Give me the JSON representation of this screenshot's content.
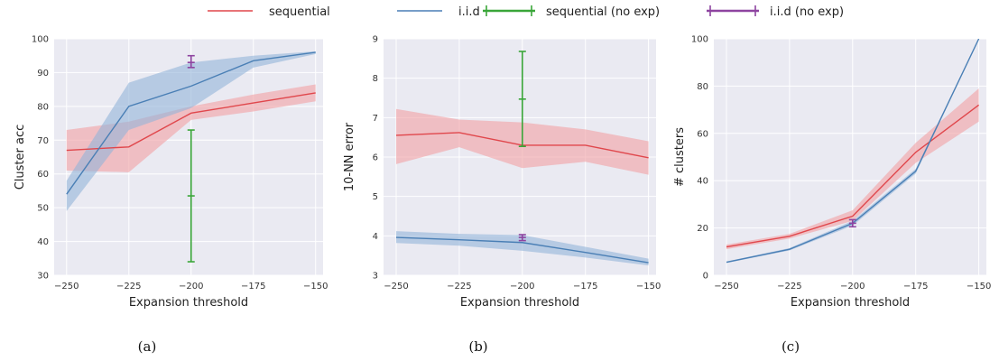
{
  "legend": [
    {
      "label": "sequential",
      "color": "#e0474c",
      "style": "line"
    },
    {
      "label": "i.i.d",
      "color": "#4a7fb5",
      "style": "line"
    },
    {
      "label": "sequential (no exp)",
      "color": "#3aa639",
      "style": "errorbar"
    },
    {
      "label": "i.i.d (no exp)",
      "color": "#8e44a0",
      "style": "errorbar"
    }
  ],
  "colors": {
    "background": "#eaeaf2",
    "grid": "#ffffff",
    "sequential": "#e0474c",
    "sequential_band": "#f2a0a4",
    "iid": "#4a7fb5",
    "iid_band": "#93b4d9",
    "sequential_noexp": "#3aa639",
    "iid_noexp": "#8e44a0"
  },
  "chart_data": [
    {
      "type": "line",
      "caption": "(a)",
      "xlabel": "Expansion threshold",
      "ylabel": "Cluster acc",
      "xlim": [
        -255,
        -147
      ],
      "ylim": [
        30,
        100
      ],
      "xticks": [
        -250,
        -225,
        -200,
        -175,
        -150
      ],
      "yticks": [
        30,
        40,
        50,
        60,
        70,
        80,
        90,
        100
      ],
      "x": [
        -250,
        -225,
        -200,
        -175,
        -150
      ],
      "series": [
        {
          "name": "sequential",
          "values": [
            67,
            68,
            78,
            81,
            84
          ],
          "lower": [
            61,
            60.5,
            76,
            78.5,
            81.5
          ],
          "upper": [
            73,
            75.5,
            80,
            83.5,
            86.5
          ]
        },
        {
          "name": "i.i.d",
          "values": [
            54,
            80,
            86,
            93.5,
            96
          ],
          "lower": [
            49,
            73,
            79.5,
            91.5,
            95.5
          ],
          "upper": [
            58,
            87,
            93,
            95,
            96.3
          ]
        }
      ],
      "errorbars": [
        {
          "name": "sequential (no exp)",
          "x": -200,
          "y": 53.5,
          "lower": 34,
          "upper": 73
        },
        {
          "name": "i.i.d (no exp)",
          "x": -200,
          "y": 93,
          "lower": 91.5,
          "upper": 95
        }
      ]
    },
    {
      "type": "line",
      "caption": "(b)",
      "xlabel": "Expansion threshold",
      "ylabel": "10-NN error",
      "xlim": [
        -255,
        -147
      ],
      "ylim": [
        3,
        9
      ],
      "xticks": [
        -250,
        -225,
        -200,
        -175,
        -150
      ],
      "yticks": [
        3,
        4,
        5,
        6,
        7,
        8,
        9
      ],
      "x": [
        -250,
        -225,
        -200,
        -175,
        -150
      ],
      "series": [
        {
          "name": "sequential",
          "values": [
            6.55,
            6.62,
            6.3,
            6.3,
            5.98
          ],
          "lower": [
            5.82,
            6.25,
            5.72,
            5.88,
            5.55
          ],
          "upper": [
            7.22,
            6.95,
            6.88,
            6.7,
            6.4
          ]
        },
        {
          "name": "i.i.d",
          "values": [
            3.96,
            3.9,
            3.83,
            3.58,
            3.32
          ],
          "lower": [
            3.82,
            3.75,
            3.62,
            3.45,
            3.25
          ],
          "upper": [
            4.12,
            4.05,
            4.02,
            3.72,
            3.42
          ]
        }
      ],
      "errorbars": [
        {
          "name": "sequential (no exp)",
          "x": -200,
          "y": 7.47,
          "lower": 6.27,
          "upper": 8.68
        },
        {
          "name": "i.i.d (no exp)",
          "x": -200,
          "y": 3.96,
          "lower": 3.88,
          "upper": 4.03
        }
      ]
    },
    {
      "type": "line",
      "caption": "(c)",
      "xlabel": "Expansion threshold",
      "ylabel": "# clusters",
      "xlim": [
        -255,
        -147
      ],
      "ylim": [
        0,
        100
      ],
      "xticks": [
        -250,
        -225,
        -200,
        -175,
        -150
      ],
      "yticks": [
        0,
        20,
        40,
        60,
        80,
        100
      ],
      "x": [
        -250,
        -225,
        -200,
        -175,
        -150
      ],
      "series": [
        {
          "name": "sequential",
          "values": [
            12,
            16.5,
            25,
            52,
            72
          ],
          "lower": [
            11,
            15.5,
            23,
            47.5,
            65
          ],
          "upper": [
            13,
            17.5,
            27.5,
            56,
            79
          ]
        },
        {
          "name": "i.i.d",
          "values": [
            5.5,
            11,
            22,
            44,
            100
          ],
          "lower": [
            5.2,
            10.5,
            21,
            43,
            100
          ],
          "upper": [
            5.8,
            11.5,
            23,
            45,
            100
          ]
        }
      ],
      "errorbars": [
        {
          "name": "i.i.d (no exp)",
          "x": -200,
          "y": 22,
          "lower": 20.5,
          "upper": 23.5
        }
      ]
    }
  ]
}
